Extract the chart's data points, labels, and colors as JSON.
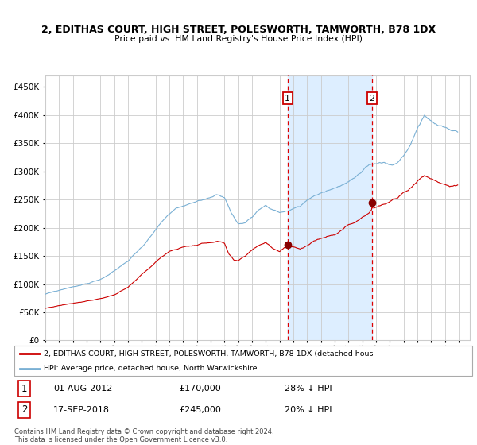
{
  "title": "2, EDITHAS COURT, HIGH STREET, POLESWORTH, TAMWORTH, B78 1DX",
  "subtitle": "Price paid vs. HM Land Registry's House Price Index (HPI)",
  "red_label": "2, EDITHAS COURT, HIGH STREET, POLESWORTH, TAMWORTH, B78 1DX (detached hous",
  "blue_label": "HPI: Average price, detached house, North Warwickshire",
  "annotation1_date": "01-AUG-2012",
  "annotation1_price": "£170,000",
  "annotation1_hpi": "28% ↓ HPI",
  "annotation2_date": "17-SEP-2018",
  "annotation2_price": "£245,000",
  "annotation2_hpi": "20% ↓ HPI",
  "footer": "Contains HM Land Registry data © Crown copyright and database right 2024.\nThis data is licensed under the Open Government Licence v3.0.",
  "ylim": [
    0,
    470000
  ],
  "yticks": [
    0,
    50000,
    100000,
    150000,
    200000,
    250000,
    300000,
    350000,
    400000,
    450000
  ],
  "bg_color": "#ffffff",
  "plot_bg": "#ffffff",
  "shade_color": "#ddeeff",
  "red_line_color": "#cc0000",
  "blue_line_color": "#7ab0d4",
  "grid_color": "#cccccc",
  "vline_color": "#dd0000",
  "ann1_year": 2012.58,
  "ann2_year": 2018.71,
  "ann1_val": 170000,
  "ann2_val": 245000
}
